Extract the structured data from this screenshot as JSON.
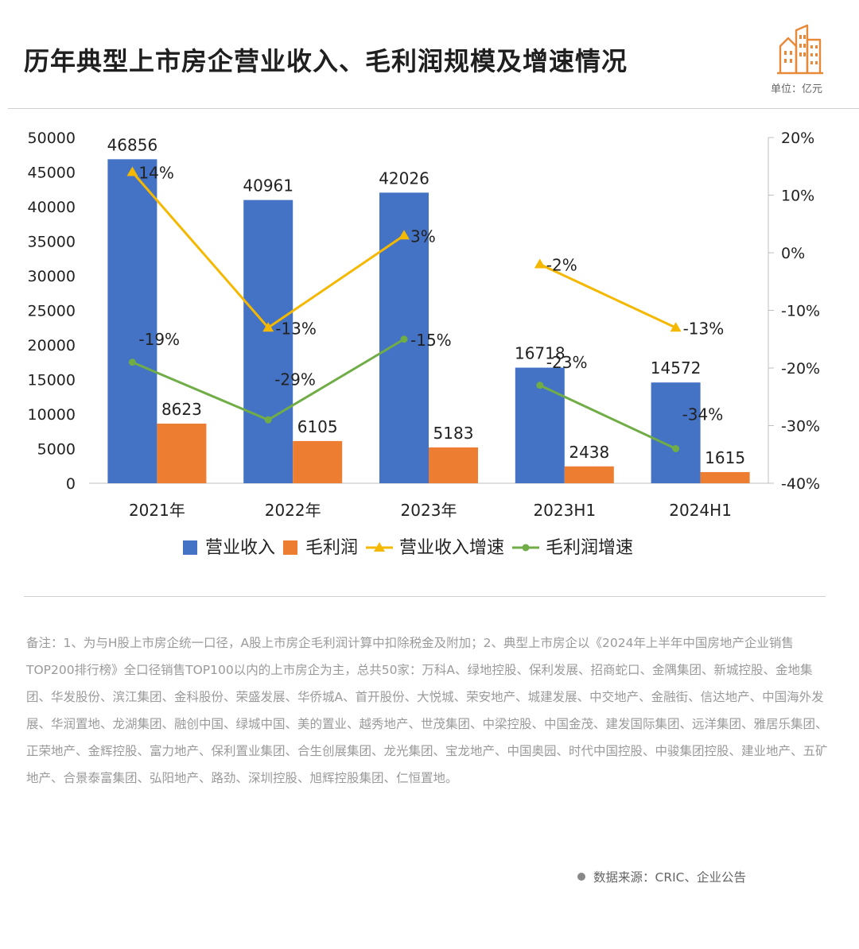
{
  "header": {
    "title": "历年典型上市房企营业收入、毛利润规模及增速情况",
    "unit": "单位：亿元",
    "logo_icon": "buildings-icon"
  },
  "chart_data": {
    "type": "bar",
    "categories": [
      "2021年",
      "2022年",
      "2023年",
      "2023H1",
      "2024H1"
    ],
    "series": [
      {
        "name": "营业收入",
        "type": "bar",
        "axis": "left",
        "color": "#4472C4",
        "values": [
          46856,
          40961,
          42026,
          16718,
          14572
        ]
      },
      {
        "name": "毛利润",
        "type": "bar",
        "axis": "left",
        "color": "#ED7D31",
        "values": [
          8623,
          6105,
          5183,
          2438,
          1615
        ]
      },
      {
        "name": "营业收入增速",
        "type": "line",
        "axis": "right",
        "marker": "triangle",
        "color": "#F5B800",
        "segments": [
          [
            0,
            1,
            2
          ],
          [
            3,
            4
          ]
        ],
        "values": [
          14,
          -13,
          3,
          -2,
          -13
        ],
        "labels": [
          "14%",
          "-13%",
          "3%",
          "-2%",
          "-13%"
        ]
      },
      {
        "name": "毛利润增速",
        "type": "line",
        "axis": "right",
        "marker": "circle",
        "color": "#70AD47",
        "segments": [
          [
            0,
            1,
            2
          ],
          [
            3,
            4
          ]
        ],
        "values": [
          -19,
          -29,
          -15,
          -23,
          -34
        ],
        "labels": [
          "-19%",
          "-29%",
          "-15%",
          "-23%",
          "-34%"
        ]
      }
    ],
    "ylim_left": [
      0,
      50000
    ],
    "yticks_left": [
      "0",
      "5000",
      "10000",
      "15000",
      "20000",
      "25000",
      "30000",
      "35000",
      "40000",
      "45000",
      "50000"
    ],
    "ylim_right": [
      -40,
      20
    ],
    "yticks_right": [
      "-40%",
      "-30%",
      "-20%",
      "-10%",
      "0%",
      "10%",
      "20%"
    ],
    "legend_position": "bottom",
    "grid": false
  },
  "note": "备注：1、为与H股上市房企统一口径，A股上市房企毛利润计算中扣除税金及附加；2、典型上市房企以《2024年上半年中国房地产企业销售TOP200排行榜》全口径销售TOP100以内的上市房企为主，总共50家：万科A、绿地控股、保利发展、招商蛇口、金隅集团、新城控股、金地集团、华发股份、滨江集团、金科股份、荣盛发展、华侨城A、首开股份、大悦城、荣安地产、城建发展、中交地产、金融街、信达地产、中国海外发展、华润置地、龙湖集团、融创中国、绿城中国、美的置业、越秀地产、世茂集团、中梁控股、中国金茂、建发国际集团、远洋集团、雅居乐集团、正荣地产、金辉控股、富力地产、保利置业集团、合生创展集团、龙光集团、宝龙地产、中国奥园、时代中国控股、中骏集团控股、建业地产、五矿地产、合景泰富集团、弘阳地产、路劲、深圳控股、旭辉控股集团、仁恒置地。",
  "source": "数据来源：CRIC、企业公告"
}
